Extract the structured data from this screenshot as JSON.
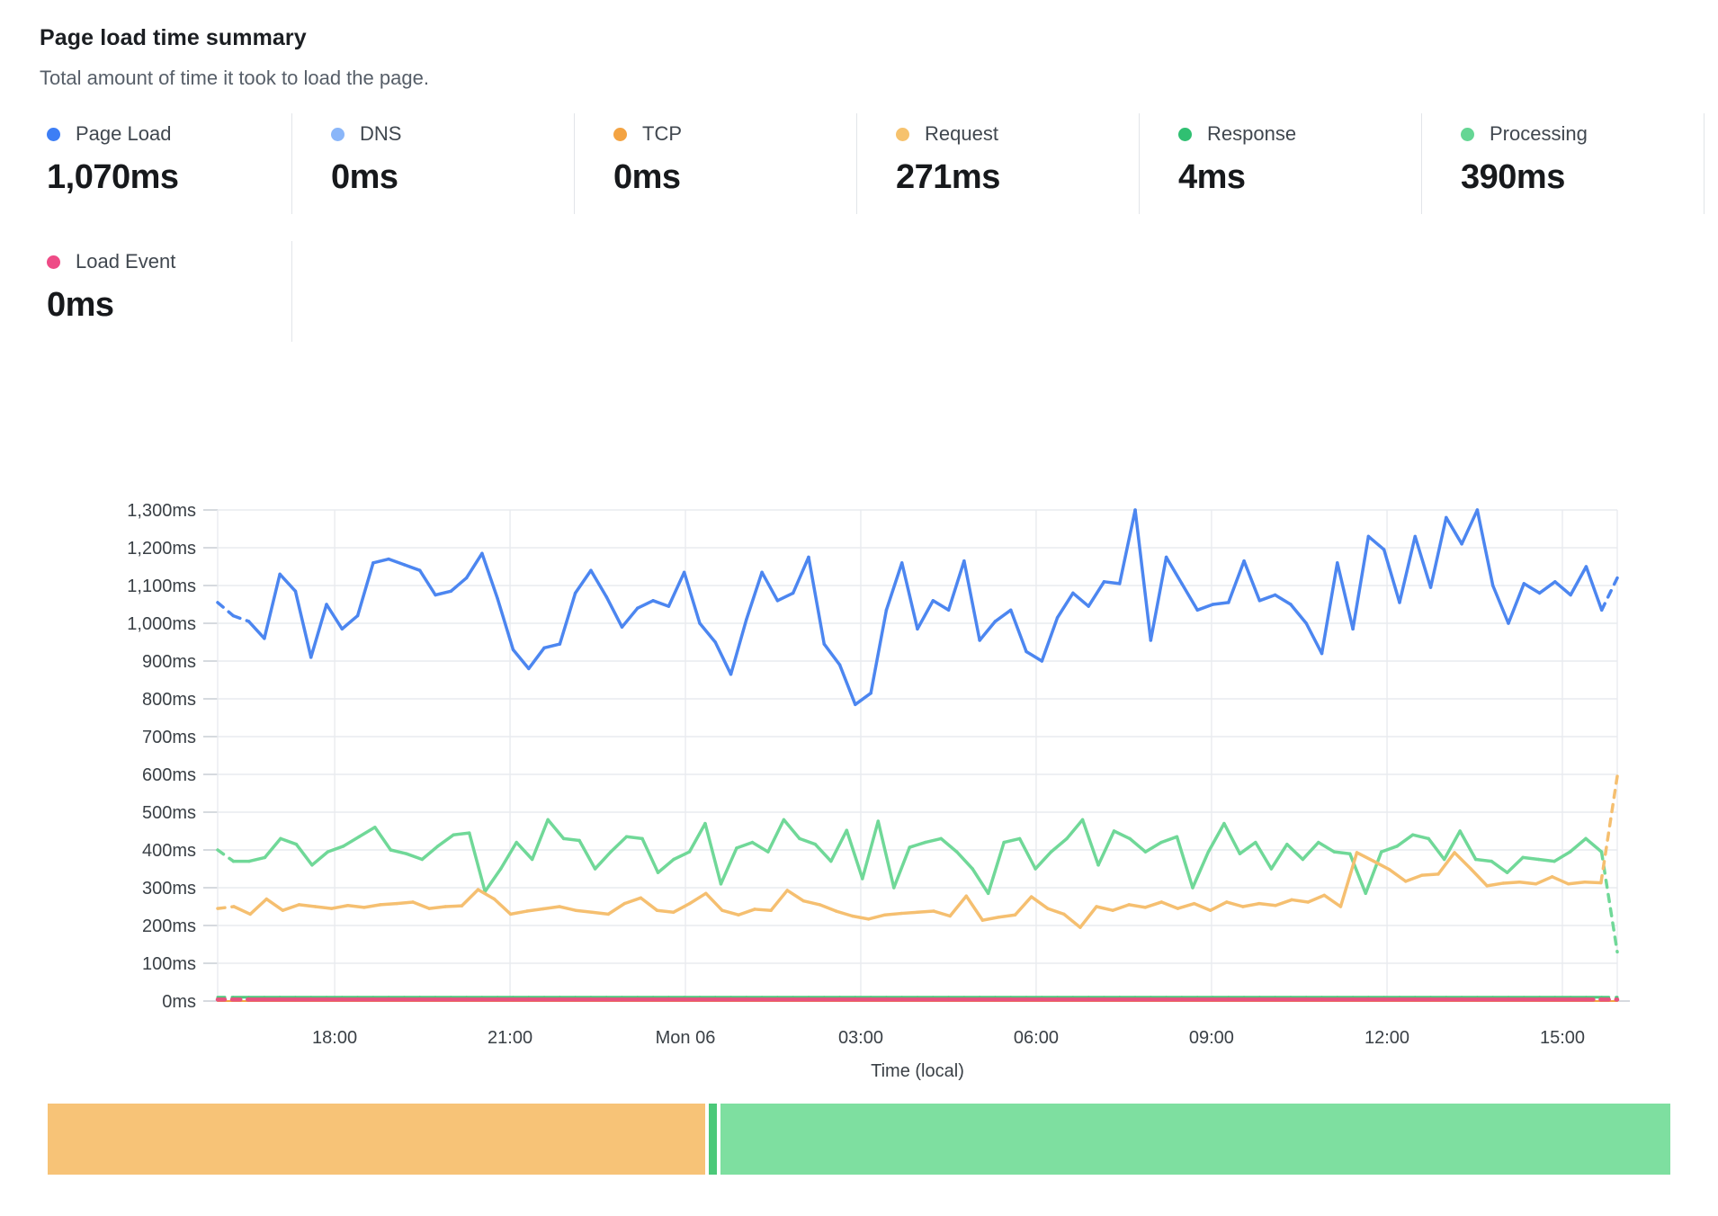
{
  "header": {
    "title": "Page load time summary",
    "subtitle": "Total amount of time it took to load the page."
  },
  "stats": {
    "row1": [
      {
        "label": "Page Load",
        "value": "1,070ms",
        "color": "#3d7ef5"
      },
      {
        "label": "DNS",
        "value": "0ms",
        "color": "#8ab6f9"
      },
      {
        "label": "TCP",
        "value": "0ms",
        "color": "#f3a342"
      },
      {
        "label": "Request",
        "value": "271ms",
        "color": "#f6c26d"
      },
      {
        "label": "Response",
        "value": "4ms",
        "color": "#30c072"
      },
      {
        "label": "Processing",
        "value": "390ms",
        "color": "#65d694"
      }
    ],
    "row2": [
      {
        "label": "Load Event",
        "value": "0ms",
        "color": "#ee4b86"
      }
    ]
  },
  "chart_data": {
    "type": "line",
    "title": "Page load time summary",
    "xlabel": "Time (local)",
    "ylabel": "",
    "ylim": [
      0,
      1300
    ],
    "ytick_step": 100,
    "grid": true,
    "yticks": [
      "0ms",
      "100ms",
      "200ms",
      "300ms",
      "400ms",
      "500ms",
      "600ms",
      "700ms",
      "800ms",
      "900ms",
      "1,000ms",
      "1,100ms",
      "1,200ms",
      "1,300ms"
    ],
    "xticks": [
      {
        "pos": 0.0836,
        "label": "18:00"
      },
      {
        "pos": 0.2089,
        "label": "21:00"
      },
      {
        "pos": 0.3342,
        "label": "Mon 06"
      },
      {
        "pos": 0.4595,
        "label": "03:00"
      },
      {
        "pos": 0.5848,
        "label": "06:00"
      },
      {
        "pos": 0.7101,
        "label": "09:00"
      },
      {
        "pos": 0.8355,
        "label": "12:00"
      },
      {
        "pos": 0.9608,
        "label": "15:00"
      }
    ],
    "series": [
      {
        "name": "DNS",
        "color": "#8ab6f9",
        "width": 2,
        "flat": 0,
        "n": 91,
        "head_n": 0,
        "tail_n": 0
      },
      {
        "name": "TCP",
        "color": "#f3a342",
        "width": 2,
        "flat": 0,
        "n": 91,
        "head_n": 0,
        "tail_n": 0
      },
      {
        "name": "Response",
        "color": "#4ec87d",
        "width": 3,
        "flat": 10,
        "n": 91,
        "head_n": 1,
        "tail_n": 1
      },
      {
        "name": "Processing",
        "color": "#70d898",
        "width": 3.5,
        "head_n": 1,
        "tail_n": 1,
        "values": [
          400,
          370,
          370,
          380,
          430,
          415,
          360,
          395,
          410,
          435,
          460,
          400,
          390,
          375,
          410,
          440,
          445,
          290,
          350,
          420,
          375,
          480,
          430,
          425,
          350,
          395,
          435,
          430,
          340,
          375,
          395,
          470,
          310,
          405,
          420,
          395,
          480,
          430,
          415,
          370,
          452,
          324,
          476,
          300,
          407,
          420,
          430,
          395,
          350,
          285,
          420,
          430,
          350,
          395,
          430,
          480,
          360,
          450,
          430,
          395,
          420,
          435,
          300,
          395,
          470,
          390,
          420,
          350,
          415,
          375,
          420,
          395,
          390,
          285,
          395,
          410,
          440,
          430,
          375,
          450,
          375,
          370,
          340,
          380,
          375,
          370,
          395,
          430,
          395,
          130
        ]
      },
      {
        "name": "Request",
        "color": "#f5bf70",
        "width": 3.5,
        "head_n": 1,
        "tail_n": 1,
        "values": [
          245,
          250,
          230,
          270,
          240,
          255,
          250,
          245,
          253,
          248,
          255,
          258,
          262,
          245,
          250,
          252,
          295,
          270,
          230,
          238,
          244,
          250,
          240,
          235,
          230,
          258,
          273,
          240,
          235,
          258,
          285,
          240,
          228,
          243,
          240,
          293,
          265,
          255,
          238,
          225,
          217,
          228,
          232,
          235,
          238,
          225,
          278,
          214,
          222,
          228,
          276,
          245,
          230,
          195,
          250,
          240,
          255,
          248,
          262,
          245,
          258,
          240,
          262,
          250,
          258,
          253,
          268,
          262,
          280,
          250,
          393,
          371,
          348,
          317,
          333,
          336,
          393,
          350,
          305,
          312,
          315,
          310,
          329,
          310,
          315,
          313,
          595
        ]
      },
      {
        "name": "Page Load",
        "color": "#4c86f0",
        "width": 3.5,
        "head_n": 2,
        "tail_n": 1,
        "values": [
          1055,
          1020,
          1005,
          960,
          1130,
          1085,
          910,
          1050,
          985,
          1020,
          1160,
          1170,
          1155,
          1140,
          1075,
          1085,
          1120,
          1185,
          1065,
          930,
          880,
          935,
          945,
          1080,
          1140,
          1070,
          990,
          1040,
          1060,
          1045,
          1135,
          1000,
          950,
          865,
          1010,
          1135,
          1060,
          1080,
          1175,
          945,
          890,
          785,
          815,
          1035,
          1160,
          985,
          1060,
          1035,
          1165,
          955,
          1005,
          1035,
          925,
          900,
          1015,
          1080,
          1045,
          1110,
          1105,
          1300,
          955,
          1175,
          1105,
          1035,
          1050,
          1055,
          1165,
          1060,
          1075,
          1050,
          1000,
          920,
          1160,
          985,
          1230,
          1195,
          1055,
          1230,
          1095,
          1280,
          1210,
          1300,
          1100,
          1000,
          1105,
          1080,
          1110,
          1075,
          1150,
          1035,
          1120
        ]
      },
      {
        "name": "Load Event",
        "color": "#e8527e",
        "width": 4.5,
        "flat": 4,
        "n": 91,
        "head_n": 2,
        "tail_n": 2
      }
    ]
  },
  "breakdown_bar": {
    "segments": [
      {
        "name": "request-segment",
        "color": "#f7c377",
        "pct": 40.7
      },
      {
        "name": "response-segment",
        "color": "#4bc979",
        "pct": 0.5
      },
      {
        "name": "processing-segment",
        "color": "#7edfa0",
        "pct": 58.8
      }
    ]
  }
}
